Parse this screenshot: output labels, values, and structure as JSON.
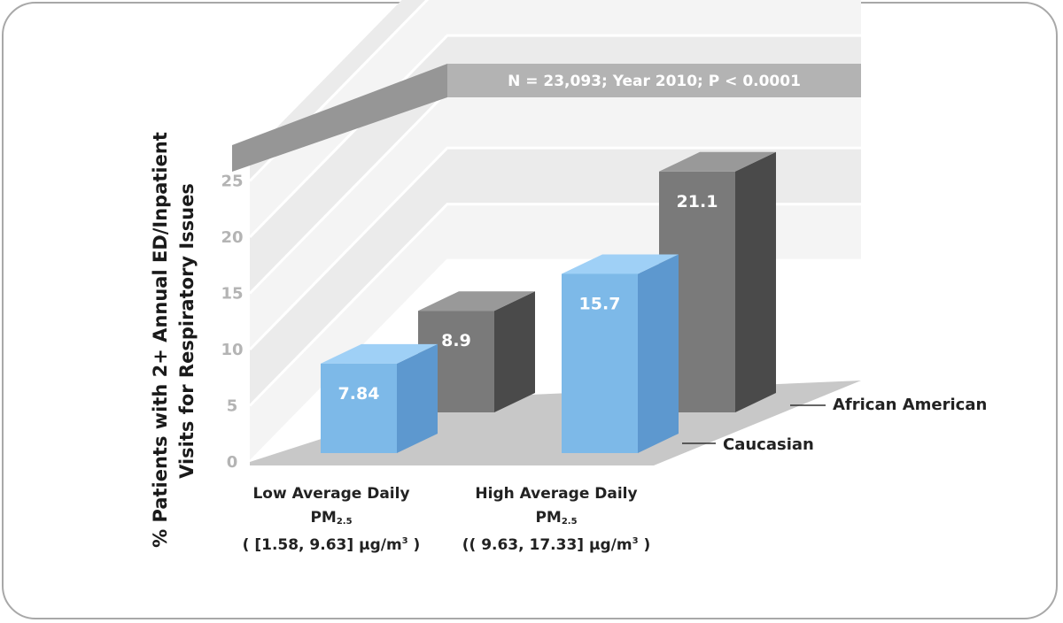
{
  "chart_data": {
    "type": "bar",
    "annotation": "N = 23,093; Year 2010; P < 0.0001",
    "ylabel_line1": "% Patients with 2+ Annual ED/Inpatient",
    "ylabel_line2": "Visits for Respiratory Issues",
    "ylim": [
      0,
      25
    ],
    "yticks": [
      0,
      5,
      10,
      15,
      20,
      25
    ],
    "categories": [
      {
        "line1": "Low Average Daily",
        "line2": "PM",
        "line2_sub": "2.5",
        "line3": "( [1.58, 9.63] μg/m",
        "line3_sup": "3",
        "line3_end": " )"
      },
      {
        "line1": "High Average Daily",
        "line2": "PM",
        "line2_sub": "2.5",
        "line3": "(( 9.63, 17.33] μg/m",
        "line3_sup": "3",
        "line3_end": " )"
      }
    ],
    "series": [
      {
        "name": "Caucasian",
        "values": [
          7.84,
          15.7
        ],
        "colors": {
          "front": "#7db9e8",
          "side": "#5d98cf",
          "top": "#9fd0f6"
        }
      },
      {
        "name": "African American",
        "values": [
          8.9,
          21.1
        ],
        "colors": {
          "front": "#7a7a7a",
          "side": "#4a4a4a",
          "top": "#999999"
        }
      }
    ],
    "value_labels": [
      "7.84",
      "15.7",
      "8.9",
      "21.1"
    ],
    "legend": "right",
    "colors": {
      "wall_band_light": "#f4f4f4",
      "wall_band_dark": "#ebebeb",
      "floor": "#c8c8c8",
      "banner": "#b3b3b3",
      "banner_dark": "#969696"
    }
  }
}
